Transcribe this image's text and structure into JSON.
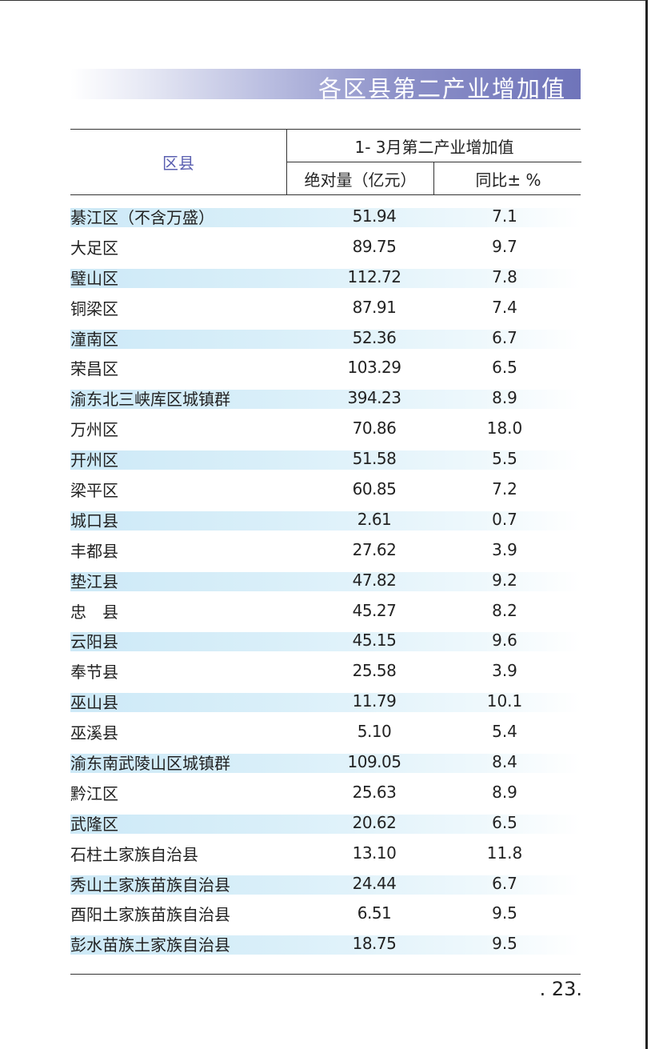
{
  "banner": {
    "title": "各区县第二产业增加值"
  },
  "table": {
    "header": {
      "district": "区县",
      "group": "1- 3月第二产业增加值",
      "absolute": "绝对量（亿元）",
      "yoy": "同比± %"
    },
    "rows": [
      {
        "name": "綦江区（不含万盛）",
        "abs": "51.94",
        "yoy": "7.1",
        "shaded": true
      },
      {
        "name": "大足区",
        "abs": "89.75",
        "yoy": "9.7",
        "shaded": false
      },
      {
        "name": "璧山区",
        "abs": "112.72",
        "yoy": "7.8",
        "shaded": true
      },
      {
        "name": "铜梁区",
        "abs": "87.91",
        "yoy": "7.4",
        "shaded": false
      },
      {
        "name": "潼南区",
        "abs": "52.36",
        "yoy": "6.7",
        "shaded": true
      },
      {
        "name": "荣昌区",
        "abs": "103.29",
        "yoy": "6.5",
        "shaded": false
      },
      {
        "name": "渝东北三峡库区城镇群",
        "abs": "394.23",
        "yoy": "8.9",
        "shaded": true
      },
      {
        "name": "万州区",
        "abs": "70.86",
        "yoy": "18.0",
        "shaded": false
      },
      {
        "name": "开州区",
        "abs": "51.58",
        "yoy": "5.5",
        "shaded": true
      },
      {
        "name": "梁平区",
        "abs": "60.85",
        "yoy": "7.2",
        "shaded": false
      },
      {
        "name": "城口县",
        "abs": "2.61",
        "yoy": "0.7",
        "shaded": true
      },
      {
        "name": "丰都县",
        "abs": "27.62",
        "yoy": "3.9",
        "shaded": false
      },
      {
        "name": "垫江县",
        "abs": "47.82",
        "yoy": "9.2",
        "shaded": true
      },
      {
        "name": "忠　县",
        "abs": "45.27",
        "yoy": "8.2",
        "shaded": false
      },
      {
        "name": "云阳县",
        "abs": "45.15",
        "yoy": "9.6",
        "shaded": true
      },
      {
        "name": "奉节县",
        "abs": "25.58",
        "yoy": "3.9",
        "shaded": false
      },
      {
        "name": "巫山县",
        "abs": "11.79",
        "yoy": "10.1",
        "shaded": true
      },
      {
        "name": "巫溪县",
        "abs": "5.10",
        "yoy": "5.4",
        "shaded": false
      },
      {
        "name": "渝东南武陵山区城镇群",
        "abs": "109.05",
        "yoy": "8.4",
        "shaded": true
      },
      {
        "name": "黔江区",
        "abs": "25.63",
        "yoy": "8.9",
        "shaded": false
      },
      {
        "name": "武隆区",
        "abs": "20.62",
        "yoy": "6.5",
        "shaded": true
      },
      {
        "name": "石柱土家族自治县",
        "abs": "13.10",
        "yoy": "11.8",
        "shaded": false
      },
      {
        "name": "秀山土家族苗族自治县",
        "abs": "24.44",
        "yoy": "6.7",
        "shaded": true
      },
      {
        "name": "酉阳土家族苗族自治县",
        "abs": "6.51",
        "yoy": "9.5",
        "shaded": false
      },
      {
        "name": "彭水苗族土家族自治县",
        "abs": "18.75",
        "yoy": "9.5",
        "shaded": true
      }
    ]
  },
  "footer": {
    "page_number": ". 23."
  }
}
